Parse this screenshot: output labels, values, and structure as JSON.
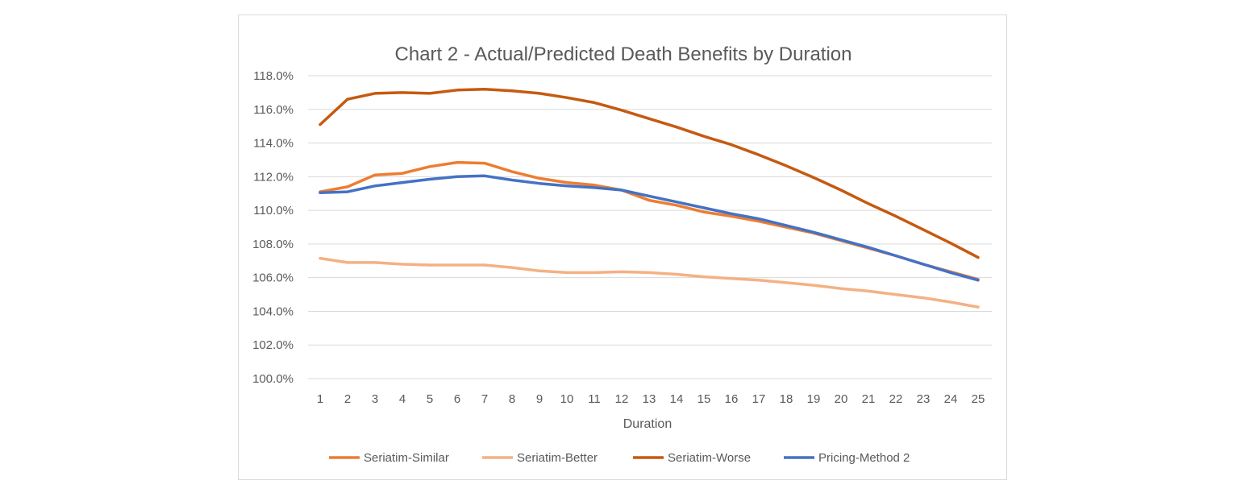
{
  "chart_data": {
    "type": "line",
    "title": "Chart 2 - Actual/Predicted Death Benefits by Duration",
    "xlabel": "Duration",
    "ylabel": "",
    "x": [
      1,
      2,
      3,
      4,
      5,
      6,
      7,
      8,
      9,
      10,
      11,
      12,
      13,
      14,
      15,
      16,
      17,
      18,
      19,
      20,
      21,
      22,
      23,
      24,
      25
    ],
    "ylim": [
      100,
      118
    ],
    "yticks": [
      100,
      102,
      104,
      106,
      108,
      110,
      112,
      114,
      116,
      118
    ],
    "ytick_labels": [
      "100.0%",
      "102.0%",
      "104.0%",
      "106.0%",
      "108.0%",
      "110.0%",
      "112.0%",
      "114.0%",
      "116.0%",
      "118.0%"
    ],
    "grid": true,
    "legend_position": "bottom",
    "series": [
      {
        "name": "Seriatim-Similar",
        "color": "#ED7D31",
        "values": [
          111.1,
          111.4,
          112.1,
          112.2,
          112.6,
          112.85,
          112.8,
          112.3,
          111.9,
          111.65,
          111.5,
          111.2,
          110.6,
          110.3,
          109.9,
          109.65,
          109.35,
          109.0,
          108.65,
          108.2,
          107.75,
          107.3,
          106.8,
          106.35,
          105.9
        ]
      },
      {
        "name": "Seriatim-Better",
        "color": "#F4B183",
        "values": [
          107.15,
          106.9,
          106.9,
          106.8,
          106.75,
          106.75,
          106.75,
          106.6,
          106.4,
          106.3,
          106.3,
          106.35,
          106.3,
          106.2,
          106.05,
          105.95,
          105.85,
          105.7,
          105.55,
          105.35,
          105.2,
          105.0,
          104.8,
          104.55,
          104.25
        ]
      },
      {
        "name": "Seriatim-Worse",
        "color": "#C55A11",
        "values": [
          115.1,
          116.6,
          116.95,
          117.0,
          116.95,
          117.15,
          117.2,
          117.1,
          116.95,
          116.7,
          116.4,
          115.95,
          115.45,
          114.95,
          114.4,
          113.9,
          113.3,
          112.65,
          111.95,
          111.2,
          110.4,
          109.65,
          108.85,
          108.05,
          107.2
        ]
      },
      {
        "name": "Pricing-Method 2",
        "color": "#4472C4",
        "values": [
          111.05,
          111.1,
          111.45,
          111.65,
          111.85,
          112.0,
          112.05,
          111.8,
          111.6,
          111.45,
          111.35,
          111.2,
          110.85,
          110.5,
          110.15,
          109.8,
          109.5,
          109.1,
          108.7,
          108.25,
          107.8,
          107.3,
          106.8,
          106.3,
          105.85
        ]
      }
    ]
  }
}
